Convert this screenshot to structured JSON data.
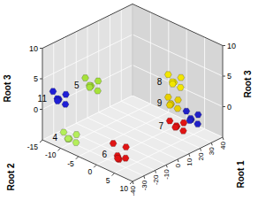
{
  "chart_data": {
    "type": "scatter3d",
    "x_label": "Root 1",
    "y_label": "Root 2",
    "z_label": "Root 3",
    "xlim": [
      -40,
      40
    ],
    "xticks": [
      -40,
      -30,
      -20,
      -10,
      0,
      10,
      20,
      30,
      40
    ],
    "ylim": [
      -15,
      10
    ],
    "yticks": [
      -15,
      -10,
      -5,
      0,
      5,
      10
    ],
    "zlim": [
      -5,
      10
    ],
    "zticks": [
      0,
      5,
      10
    ],
    "grid": true,
    "marker": "hexagon",
    "series": [
      {
        "name": "11",
        "color": "#1f1fd6",
        "x": [
          -35,
          -32,
          -38,
          -33,
          -37,
          -34
        ],
        "y": [
          -12,
          -11,
          -11.5,
          -13,
          -13,
          -10.5
        ],
        "z": [
          2,
          2.8,
          2.5,
          1.3,
          3.2,
          1.5
        ]
      },
      {
        "name": "5",
        "color": "#a6e23a",
        "x": [
          -16,
          -13,
          -19,
          -14,
          -18,
          -15
        ],
        "y": [
          -9,
          -8,
          -8.5,
          -10,
          -10,
          -7.5
        ],
        "z": [
          3.3,
          4.1,
          3.8,
          2.6,
          4.5,
          2.8
        ]
      },
      {
        "name": "8",
        "color": "#f2e600",
        "x": [
          16,
          19,
          13,
          18,
          14,
          17
        ],
        "y": [
          4,
          5,
          4.5,
          3,
          3,
          5.5
        ],
        "z": [
          4.5,
          5.3,
          5,
          3.8,
          5.7,
          4
        ]
      },
      {
        "name": "9",
        "color": "#e8d000",
        "x": [
          15,
          18,
          13,
          17,
          14,
          16
        ],
        "y": [
          3.5,
          4.5,
          4,
          2.5,
          3,
          5
        ],
        "z": [
          0.9,
          1.6,
          1.3,
          0.3,
          2,
          0.5
        ]
      },
      {
        "color": "#2020c8",
        "x": [
          28,
          31,
          26,
          30,
          27,
          29
        ],
        "y": [
          5,
          6,
          5.5,
          4,
          4,
          6.5
        ],
        "z": [
          -2.4,
          -1.6,
          -1.9,
          -3,
          -1.2,
          -2.8
        ]
      },
      {
        "name": "7",
        "color": "#e01414",
        "x": [
          20,
          23,
          18,
          22,
          17,
          21
        ],
        "y": [
          3.5,
          4.5,
          4,
          2.5,
          2.5,
          5
        ],
        "z": [
          -3.2,
          -2.6,
          -2.8,
          -3.8,
          -2.3,
          -3.6
        ]
      },
      {
        "name": "4",
        "color": "#b4ee5a",
        "x": [
          -32,
          -29,
          -35,
          -30,
          -34,
          -31
        ],
        "y": [
          -10,
          -9,
          -9.5,
          -11,
          -11,
          -8.5
        ],
        "z": [
          -4.2,
          -3.5,
          -3.8,
          -4.6,
          -3.2,
          -4.5
        ]
      },
      {
        "name": "6",
        "color": "#e01414",
        "x": [
          -28,
          -25,
          -31,
          -26,
          -30,
          -27
        ],
        "y": [
          2.5,
          3.5,
          3,
          1.5,
          1.5,
          4
        ],
        "z": [
          -4.5,
          -2.5,
          -3.5,
          -4.8,
          -2,
          -4
        ]
      }
    ]
  }
}
